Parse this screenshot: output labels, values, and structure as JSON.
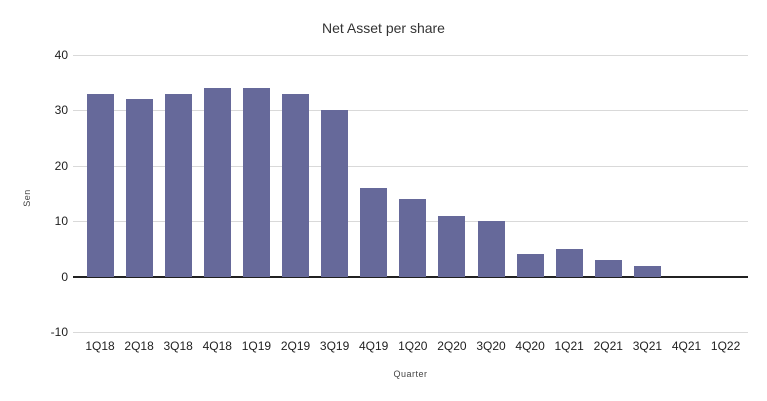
{
  "chart_data": {
    "type": "bar",
    "title": "Net Asset per share",
    "xlabel": "Quarter",
    "ylabel": "Sen",
    "categories": [
      "1Q18",
      "2Q18",
      "3Q18",
      "4Q18",
      "1Q19",
      "2Q19",
      "3Q19",
      "4Q19",
      "1Q20",
      "2Q20",
      "3Q20",
      "4Q20",
      "1Q21",
      "2Q21",
      "3Q21",
      "4Q21",
      "1Q22"
    ],
    "values": [
      33,
      32,
      33,
      34,
      34,
      33,
      30,
      16,
      14,
      11,
      10,
      4,
      5,
      3,
      2,
      0,
      0
    ],
    "ylim": [
      -10,
      40
    ],
    "yticks": [
      40,
      30,
      20,
      10,
      0,
      -10
    ],
    "grid": true,
    "legend": "none",
    "colors": {
      "bar": "#66699A",
      "gridline": "#D9D9D9",
      "zero_axis": "#212121",
      "tick_text": "#212121",
      "title_text": "#333333",
      "axis_title_text": "#444444"
    }
  }
}
